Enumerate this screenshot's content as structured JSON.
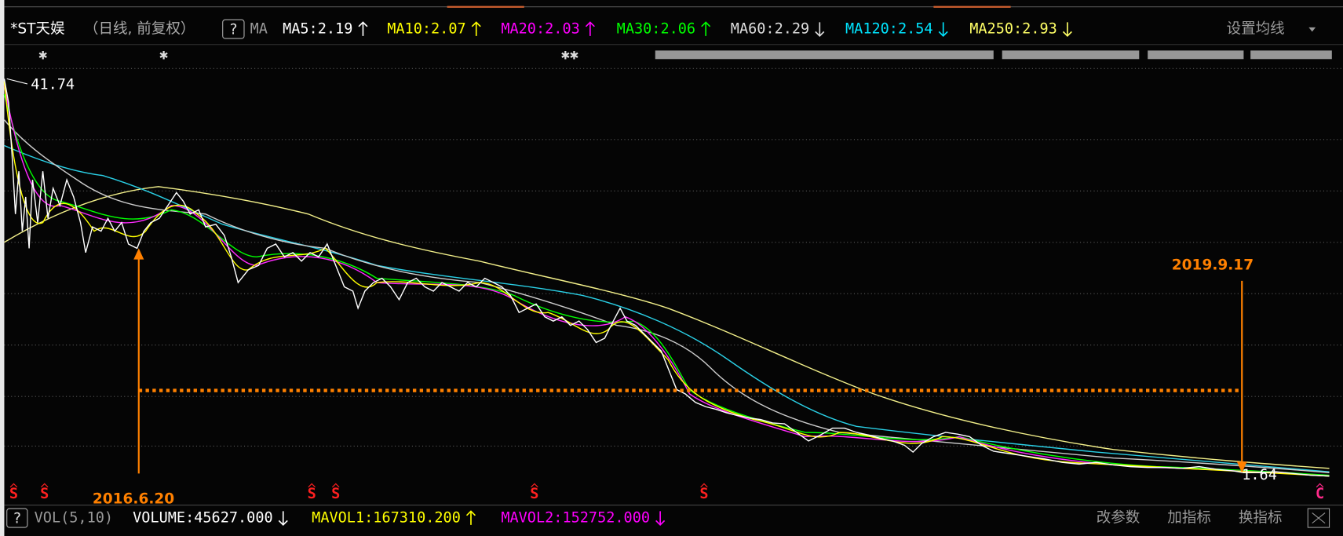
{
  "toolbar": {
    "stock": "*ST天娱",
    "mode": "（日线, 前复权）",
    "help": "?",
    "indicator": "MA",
    "ma": [
      {
        "text": "MA5:2.19",
        "color": "#ffffff",
        "trend": "up"
      },
      {
        "text": "MA10:2.07",
        "color": "#ffff00",
        "trend": "up"
      },
      {
        "text": "MA20:2.03",
        "color": "#ff00ff",
        "trend": "up"
      },
      {
        "text": "MA30:2.06",
        "color": "#00ff00",
        "trend": "up"
      },
      {
        "text": "MA60:2.29",
        "color": "#dddddd",
        "trend": "down"
      },
      {
        "text": "MA120:2.54",
        "color": "#00e5ff",
        "trend": "down"
      },
      {
        "text": "MA250:2.93",
        "color": "#ffff66",
        "trend": "down"
      }
    ],
    "settings": "设置均线"
  },
  "price_panel": {
    "high_label": "41.74",
    "low_label": "1.64",
    "start_annotation": "2016.6.20",
    "end_annotation": "2019.9.17",
    "markers": [
      "S",
      "S",
      "S",
      "S",
      "S",
      "S",
      "C"
    ]
  },
  "volume_bar": {
    "help": "?",
    "indicator": "VOL(5,10)",
    "items": [
      {
        "text": "VOLUME:45627.000",
        "color": "#ffffff",
        "trend": "down"
      },
      {
        "text": "MAVOL1:167310.200",
        "color": "#ffff00",
        "trend": "up"
      },
      {
        "text": "MAVOL2:152752.000",
        "color": "#ff00ff",
        "trend": "down"
      }
    ],
    "buttons": [
      "改参数",
      "加指标",
      "换指标"
    ]
  }
}
